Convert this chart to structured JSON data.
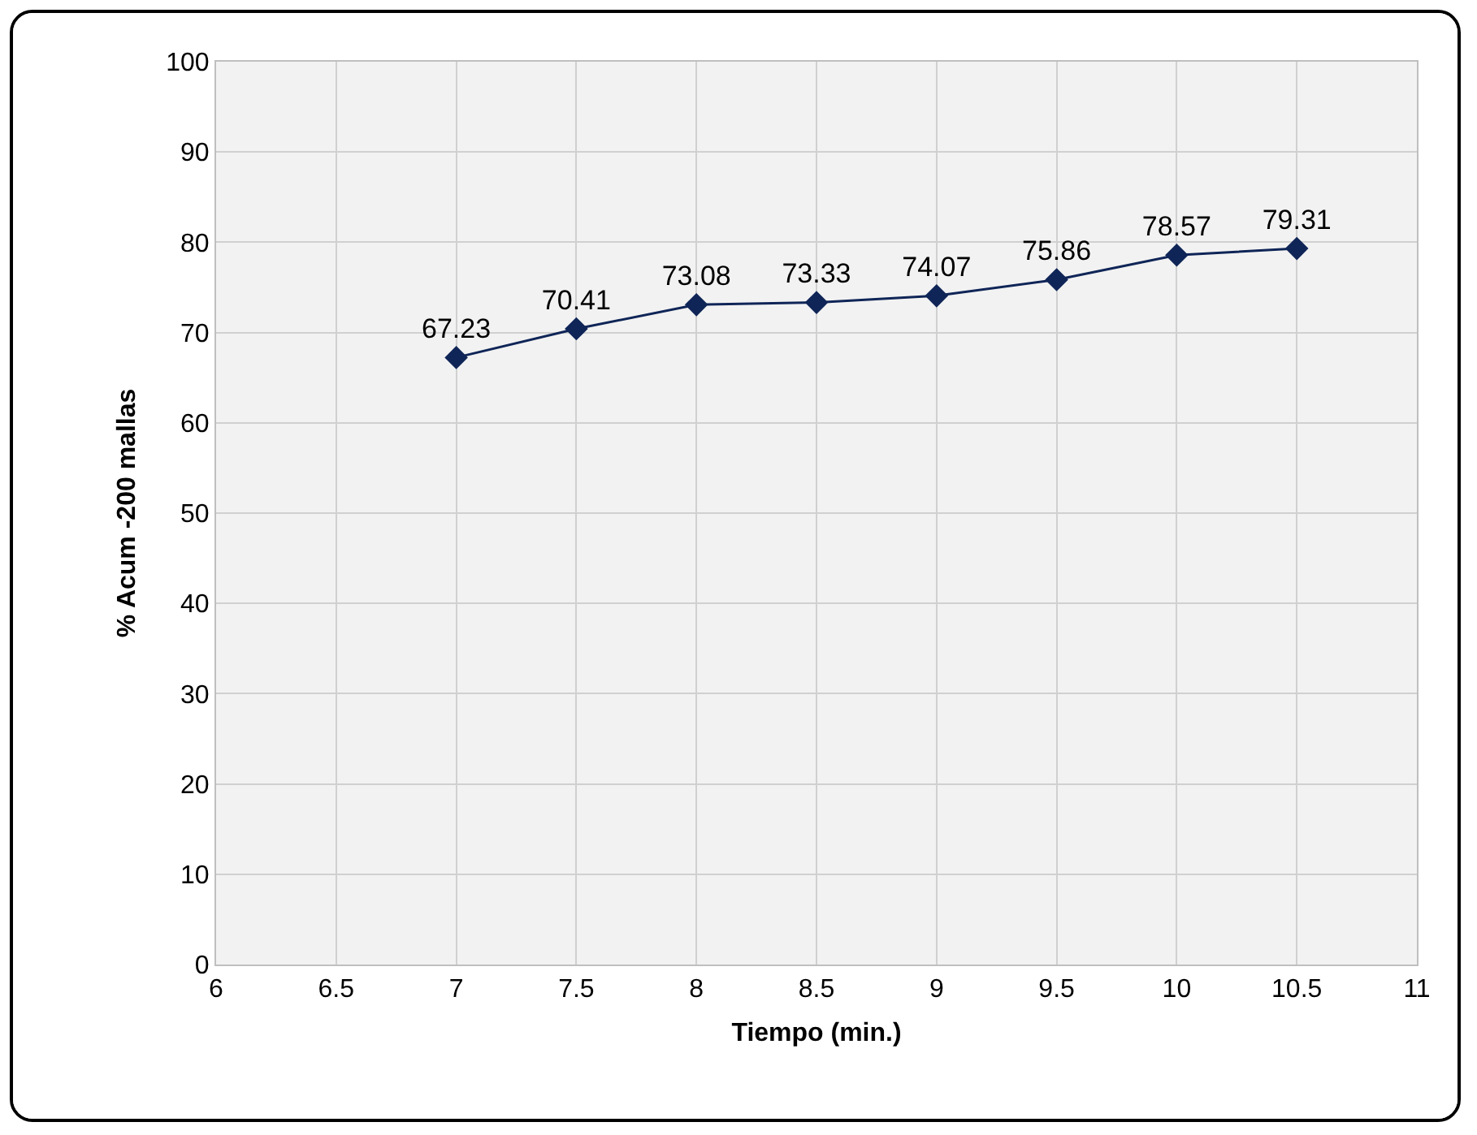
{
  "chart_data": {
    "type": "line",
    "xlabel": "Tiempo (min.)",
    "ylabel": "% Acum -200 mallas",
    "x": [
      7,
      7.5,
      8,
      8.5,
      9,
      9.5,
      10,
      10.5
    ],
    "series": [
      {
        "color": "#0f2557",
        "values": [
          67.23,
          70.41,
          73.08,
          73.33,
          74.07,
          75.86,
          78.57,
          79.31
        ]
      }
    ],
    "xlim": [
      6,
      11
    ],
    "xticks": [
      6,
      6.5,
      7,
      7.5,
      8,
      8.5,
      9,
      9.5,
      10,
      10.5,
      11
    ],
    "ylim": [
      0,
      100
    ],
    "yticks": [
      0,
      10,
      20,
      30,
      40,
      50,
      60,
      70,
      80,
      90,
      100
    ],
    "grid": true,
    "marker": "diamond",
    "line_style": "solid",
    "data_labels": true,
    "legend": false
  }
}
